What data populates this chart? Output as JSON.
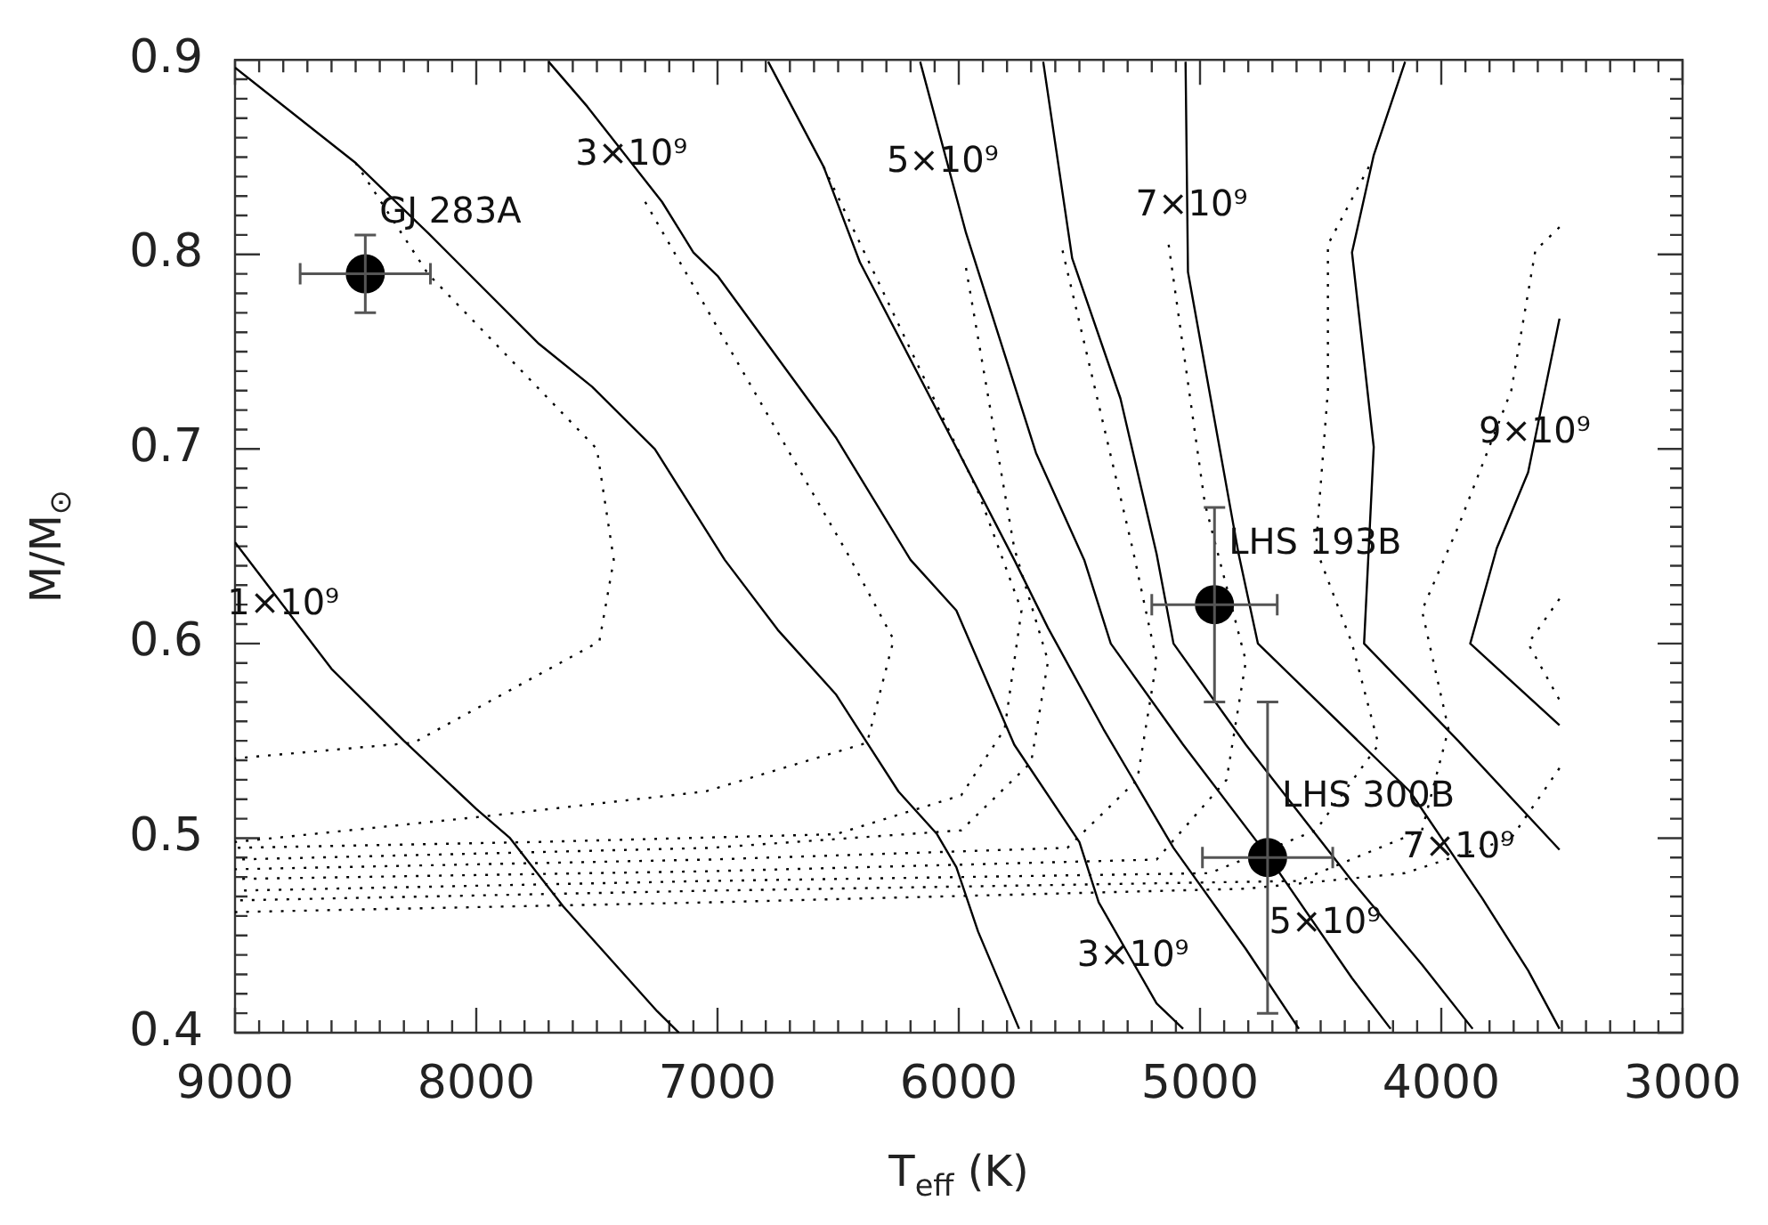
{
  "chart_data": {
    "type": "line",
    "xlabel": "T$_{eff}$ (K)",
    "ylabel": "M/M$_{⊙}$",
    "xlim": [
      9000,
      3000
    ],
    "ylim": [
      0.4,
      0.9
    ],
    "xticks": [
      3000,
      {
        "value": 3100,
        "label": null
      },
      {
        "value": 3200,
        "label": null
      },
      {
        "value": 3300,
        "label": null
      },
      {
        "value": 3400,
        "label": null
      },
      {
        "value": 3500,
        "label": null
      },
      {
        "value": 3600,
        "label": null
      },
      {
        "value": 3700,
        "label": null
      },
      {
        "value": 3800,
        "label": null
      },
      {
        "value": 3900,
        "label": null
      },
      4000,
      {
        "value": 4100,
        "label": null
      },
      {
        "value": 4200,
        "label": null
      },
      {
        "value": 4300,
        "label": null
      },
      {
        "value": 4400,
        "label": null
      },
      {
        "value": 4500,
        "label": null
      },
      {
        "value": 4600,
        "label": null
      },
      {
        "value": 4700,
        "label": null
      },
      {
        "value": 4800,
        "label": null
      },
      {
        "value": 4900,
        "label": null
      },
      5000,
      {
        "value": 5100,
        "label": null
      },
      {
        "value": 5200,
        "label": null
      },
      {
        "value": 5300,
        "label": null
      },
      {
        "value": 5400,
        "label": null
      },
      {
        "value": 5500,
        "label": null
      },
      {
        "value": 5600,
        "label": null
      },
      {
        "value": 5700,
        "label": null
      },
      {
        "value": 5800,
        "label": null
      },
      {
        "value": 5900,
        "label": null
      },
      6000,
      {
        "value": 6100,
        "label": null
      },
      {
        "value": 6200,
        "label": null
      },
      {
        "value": 6300,
        "label": null
      },
      {
        "value": 6400,
        "label": null
      },
      {
        "value": 6500,
        "label": null
      },
      {
        "value": 6600,
        "label": null
      },
      {
        "value": 6700,
        "label": null
      },
      {
        "value": 6800,
        "label": null
      },
      {
        "value": 6900,
        "label": null
      },
      7000,
      {
        "value": 7100,
        "label": null
      },
      {
        "value": 7200,
        "label": null
      },
      {
        "value": 7300,
        "label": null
      },
      {
        "value": 7400,
        "label": null
      },
      {
        "value": 7500,
        "label": null
      },
      {
        "value": 7600,
        "label": null
      },
      {
        "value": 7700,
        "label": null
      },
      {
        "value": 7800,
        "label": null
      },
      {
        "value": 7900,
        "label": null
      },
      8000,
      {
        "value": 8100,
        "label": null
      },
      {
        "value": 8200,
        "label": null
      },
      {
        "value": 8300,
        "label": null
      },
      {
        "value": 8400,
        "label": null
      },
      {
        "value": 8500,
        "label": null
      },
      {
        "value": 8600,
        "label": null
      },
      {
        "value": 8700,
        "label": null
      },
      {
        "value": 8800,
        "label": null
      },
      {
        "value": 8900,
        "label": null
      },
      9000
    ],
    "yticks": [
      0.4,
      {
        "value": 0.41,
        "label": null
      },
      {
        "value": 0.42,
        "label": null
      },
      {
        "value": 0.43,
        "label": null
      },
      {
        "value": 0.44,
        "label": null
      },
      {
        "value": 0.45,
        "label": null
      },
      {
        "value": 0.46,
        "label": null
      },
      {
        "value": 0.47,
        "label": null
      },
      {
        "value": 0.48,
        "label": null
      },
      {
        "value": 0.49,
        "label": null
      },
      0.5,
      {
        "value": 0.51,
        "label": null
      },
      {
        "value": 0.52,
        "label": null
      },
      {
        "value": 0.53,
        "label": null
      },
      {
        "value": 0.54,
        "label": null
      },
      {
        "value": 0.55,
        "label": null
      },
      {
        "value": 0.56,
        "label": null
      },
      {
        "value": 0.57,
        "label": null
      },
      {
        "value": 0.58,
        "label": null
      },
      {
        "value": 0.59,
        "label": null
      },
      0.6,
      {
        "value": 0.61,
        "label": null
      },
      {
        "value": 0.62,
        "label": null
      },
      {
        "value": 0.63,
        "label": null
      },
      {
        "value": 0.64,
        "label": null
      },
      {
        "value": 0.65,
        "label": null
      },
      {
        "value": 0.66,
        "label": null
      },
      {
        "value": 0.67,
        "label": null
      },
      {
        "value": 0.68,
        "label": null
      },
      {
        "value": 0.69,
        "label": null
      },
      0.7,
      {
        "value": 0.71,
        "label": null
      },
      {
        "value": 0.72,
        "label": null
      },
      {
        "value": 0.73,
        "label": null
      },
      {
        "value": 0.74,
        "label": null
      },
      {
        "value": 0.75,
        "label": null
      },
      {
        "value": 0.76,
        "label": null
      },
      {
        "value": 0.77,
        "label": null
      },
      {
        "value": 0.78,
        "label": null
      },
      {
        "value": 0.79,
        "label": null
      },
      0.8,
      {
        "value": 0.81,
        "label": null
      },
      {
        "value": 0.82,
        "label": null
      },
      {
        "value": 0.83,
        "label": null
      },
      {
        "value": 0.84,
        "label": null
      },
      {
        "value": 0.85,
        "label": null
      },
      {
        "value": 0.86,
        "label": null
      },
      {
        "value": 0.87,
        "label": null
      },
      {
        "value": 0.88,
        "label": null
      },
      {
        "value": 0.89,
        "label": null
      },
      0.9
    ],
    "grid": false,
    "legend": false,
    "series": [
      {
        "type": "line",
        "color": "#000000",
        "line_style": "solid",
        "marker": "none",
        "x": [
          9000,
          8600,
          8300,
          8000,
          7860,
          7640,
          7250,
          7160
        ],
        "values": [
          0.652,
          0.587,
          0.55,
          0.515,
          0.5,
          0.465,
          0.411,
          0.4
        ]
      },
      {
        "type": "line",
        "color": "#000000",
        "line_style": "solid",
        "marker": "none",
        "x": [
          9000,
          8500,
          8200,
          7740,
          7520,
          7260,
          6970,
          6750,
          6510,
          6380,
          6250,
          6090,
          6010,
          5920,
          5750
        ],
        "values": [
          0.896,
          0.847,
          0.811,
          0.754,
          0.732,
          0.7,
          0.643,
          0.607,
          0.574,
          0.549,
          0.524,
          0.502,
          0.485,
          0.452,
          0.402
        ]
      },
      {
        "type": "line",
        "color": "#000000",
        "line_style": "solid",
        "marker": "none",
        "x": [
          7700,
          7540,
          7230,
          7100,
          7000,
          6510,
          6200,
          6010,
          5770,
          5500,
          5420,
          5180,
          5070
        ],
        "values": [
          0.899,
          0.876,
          0.827,
          0.801,
          0.789,
          0.706,
          0.643,
          0.617,
          0.548,
          0.498,
          0.467,
          0.415,
          0.402
        ]
      },
      {
        "type": "line",
        "color": "#000000",
        "line_style": "solid",
        "marker": "none",
        "x": [
          6790,
          6560,
          6410,
          6020,
          5770,
          5630,
          5400,
          5110,
          4810,
          4590
        ],
        "values": [
          0.899,
          0.845,
          0.796,
          0.703,
          0.643,
          0.608,
          0.556,
          0.495,
          0.443,
          0.402
        ]
      },
      {
        "type": "line",
        "color": "#000000",
        "line_style": "solid",
        "marker": "none",
        "x": [
          6160,
          5970,
          5680,
          5480,
          5370,
          5070,
          4720,
          4370,
          4210
        ],
        "values": [
          0.899,
          0.811,
          0.698,
          0.643,
          0.6,
          0.548,
          0.491,
          0.428,
          0.402
        ]
      },
      {
        "type": "line",
        "color": "#000000",
        "line_style": "solid",
        "marker": "none",
        "x": [
          5650,
          5530,
          5330,
          5180,
          5110,
          4810,
          4370,
          4080,
          3870
        ],
        "values": [
          0.899,
          0.798,
          0.726,
          0.646,
          0.6,
          0.548,
          0.478,
          0.435,
          0.402
        ]
      },
      {
        "type": "line",
        "color": "#000000",
        "line_style": "solid",
        "marker": "none",
        "x": [
          5060,
          5050,
          4840,
          4760,
          4130,
          3830,
          3640,
          3510
        ],
        "values": [
          0.899,
          0.791,
          0.646,
          0.6,
          0.524,
          0.469,
          0.432,
          0.402
        ]
      },
      {
        "type": "line",
        "color": "#000000",
        "line_style": "solid",
        "marker": "none",
        "x": [
          4150,
          4280,
          4370,
          4280,
          4320,
          3930,
          3510
        ],
        "values": [
          0.899,
          0.851,
          0.801,
          0.701,
          0.6,
          0.55,
          0.494
        ]
      },
      {
        "type": "line",
        "color": "#000000",
        "line_style": "solid",
        "marker": "none",
        "x": [
          3510,
          3640,
          3770,
          3880,
          3510
        ],
        "values": [
          0.767,
          0.688,
          0.649,
          0.6,
          0.558
        ]
      },
      {
        "type": "line",
        "color": "#000000",
        "line_style": "dotted",
        "marker": "none",
        "x": [
          8500,
          8200,
          7500,
          7430,
          7490,
          8260,
          9000
        ],
        "values": [
          0.847,
          0.79,
          0.7,
          0.643,
          0.601,
          0.549,
          0.541
        ]
      },
      {
        "type": "line",
        "color": "#000000",
        "line_style": "dotted",
        "marker": "none",
        "x": [
          7300,
          6460,
          6270,
          6380,
          7050,
          7980,
          9000
        ],
        "values": [
          0.827,
          0.646,
          0.602,
          0.549,
          0.524,
          0.511,
          0.498
        ]
      },
      {
        "type": "line",
        "color": "#000000",
        "line_style": "dotted",
        "marker": "none",
        "x": [
          6560,
          5920,
          5740,
          5810,
          5990,
          6510,
          7760,
          9000
        ],
        "values": [
          0.845,
          0.678,
          0.617,
          0.556,
          0.522,
          0.502,
          0.498,
          0.495
        ]
      },
      {
        "type": "line",
        "color": "#000000",
        "line_style": "dotted",
        "marker": "none",
        "x": [
          5970,
          5770,
          5630,
          5700,
          5990,
          7030,
          9000
        ],
        "values": [
          0.793,
          0.649,
          0.591,
          0.539,
          0.504,
          0.495,
          0.489
        ]
      },
      {
        "type": "line",
        "color": "#000000",
        "line_style": "dotted",
        "marker": "none",
        "x": [
          5570,
          5280,
          5180,
          5260,
          5550,
          7030,
          9000
        ],
        "values": [
          0.802,
          0.649,
          0.591,
          0.53,
          0.495,
          0.489,
          0.484
        ]
      },
      {
        "type": "line",
        "color": "#000000",
        "line_style": "dotted",
        "marker": "none",
        "x": [
          5130,
          4980,
          4810,
          4890,
          5180,
          7030,
          9000
        ],
        "values": [
          0.805,
          0.672,
          0.591,
          0.53,
          0.489,
          0.483,
          0.479
        ]
      },
      {
        "type": "line",
        "color": "#000000",
        "line_style": "dotted",
        "marker": "none",
        "x": [
          4300,
          4470,
          4470,
          4520,
          4370,
          4260,
          4520,
          4960,
          7030,
          9000
        ],
        "values": [
          0.845,
          0.805,
          0.73,
          0.649,
          0.6,
          0.548,
          0.504,
          0.482,
          0.478,
          0.473
        ]
      },
      {
        "type": "line",
        "color": "#000000",
        "line_style": "dotted",
        "marker": "none",
        "x": [
          3510,
          3610,
          3710,
          3930,
          4080,
          3970,
          4080,
          4590,
          7030,
          9000
        ],
        "values": [
          0.814,
          0.802,
          0.73,
          0.66,
          0.617,
          0.556,
          0.504,
          0.478,
          0.473,
          0.468
        ]
      },
      {
        "type": "line",
        "color": "#000000",
        "line_style": "dotted",
        "marker": "none",
        "x": [
          3510,
          3640,
          3510
        ],
        "values": [
          0.623,
          0.6,
          0.571
        ]
      },
      {
        "type": "line",
        "color": "#000000",
        "line_style": "dotted",
        "marker": "none",
        "x": [
          3510,
          3710,
          4150,
          4810,
          7030,
          9000
        ],
        "values": [
          0.536,
          0.5,
          0.482,
          0.474,
          0.467,
          0.462
        ]
      },
      {
        "type": "scatter",
        "color": "#000000",
        "marker": "circle",
        "x": [
          8460,
          4940,
          4720
        ],
        "values": [
          0.79,
          0.62,
          0.49
        ],
        "errors": [
          0.02,
          0.05,
          0.08
        ],
        "xerrors": [
          270,
          260,
          270
        ]
      }
    ],
    "annotations": [
      {
        "text": "GJ 283A",
        "x": 8460,
        "y": 0.79
      },
      {
        "text": "LHS 193B",
        "x": 4940,
        "y": 0.62
      },
      {
        "text": "LHS 300B",
        "x": 4720,
        "y": 0.49
      },
      {
        "text": "1×10⁹",
        "x": 8800,
        "y": 0.62
      },
      {
        "text": "3×10⁹",
        "x": 7357,
        "y": 0.851
      },
      {
        "text": "5×10⁹",
        "x": 6067,
        "y": 0.847
      },
      {
        "text": "7×10⁹",
        "x": 5035,
        "y": 0.825
      },
      {
        "text": "9×10⁹",
        "x": 3613,
        "y": 0.708
      },
      {
        "text": "7×10⁹",
        "x": 3929,
        "y": 0.495
      },
      {
        "text": "5×10⁹",
        "x": 4482,
        "y": 0.456
      },
      {
        "text": "3×10⁹",
        "x": 5278,
        "y": 0.439
      }
    ]
  }
}
